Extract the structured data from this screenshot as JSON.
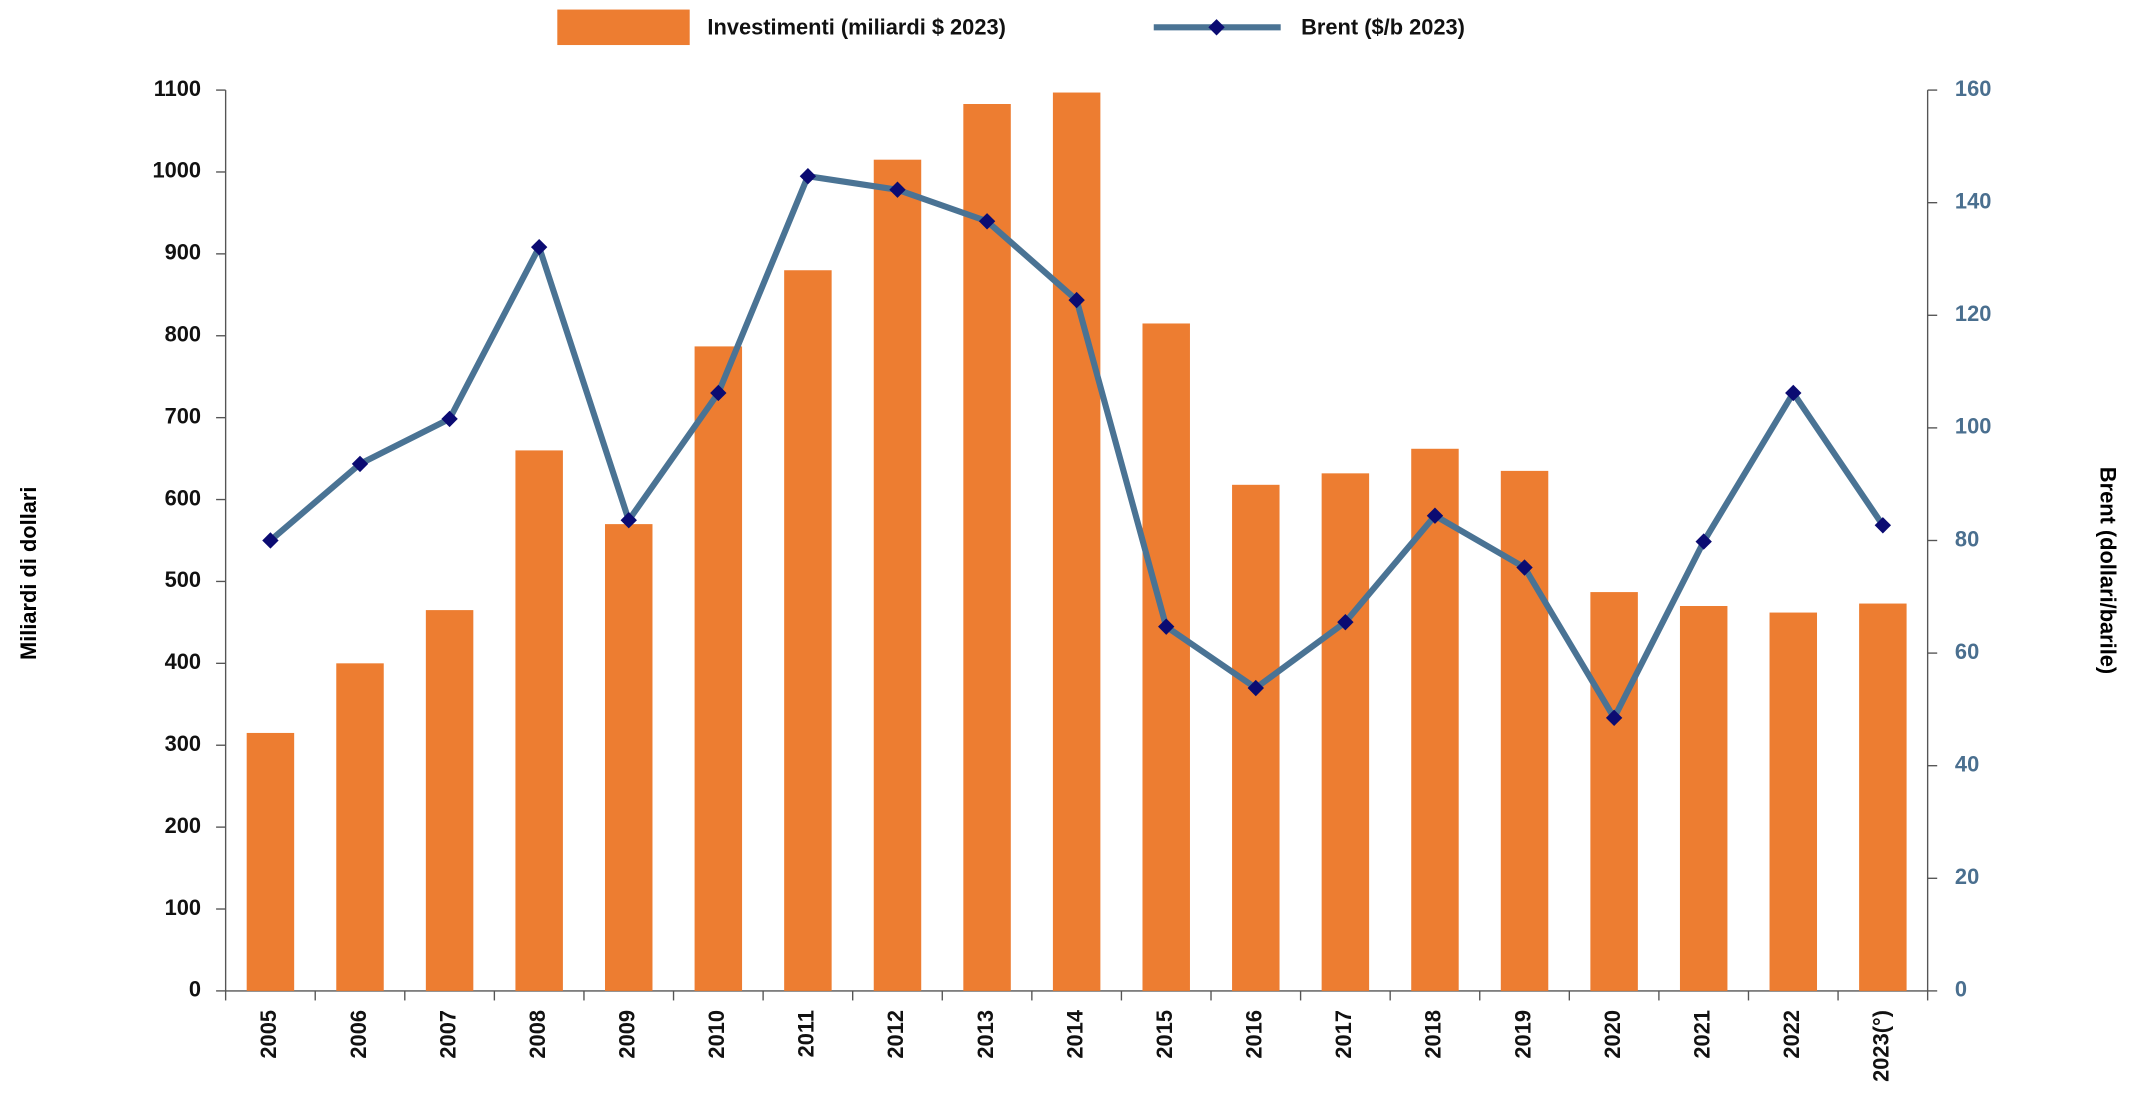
{
  "chart_data": {
    "type": "bar",
    "categories": [
      "2005",
      "2006",
      "2007",
      "2008",
      "2009",
      "2010",
      "2011",
      "2012",
      "2013",
      "2014",
      "2015",
      "2016",
      "2017",
      "2018",
      "2019",
      "2020",
      "2021",
      "2022",
      "2023(°)"
    ],
    "series": [
      {
        "name": "Investimenti (miliardi $ 2023)",
        "type": "bar",
        "color": "#ED7D31",
        "values": [
          315,
          400,
          465,
          660,
          570,
          787,
          880,
          1015,
          1083,
          1097,
          815,
          618,
          632,
          662,
          635,
          487,
          470,
          462,
          473
        ]
      },
      {
        "name": "Brent ($/b 2023)",
        "type": "line",
        "axis": "y2",
        "color": "#4A7394",
        "marker_color": "#0B0B72",
        "values": [
          80,
          93.6,
          101.6,
          132.1,
          83.6,
          106.2,
          144.7,
          142.3,
          136.7,
          122.7,
          64.7,
          53.8,
          65.5,
          84.4,
          75.2,
          48.5,
          79.8,
          106.2,
          82.7
        ]
      }
    ],
    "ylabel": "Miliardi di dollari",
    "y2label": "Brent (dollari/barile)",
    "ylim": [
      0,
      1100
    ],
    "yticks": [
      0,
      100,
      200,
      300,
      400,
      500,
      600,
      700,
      800,
      900,
      1000,
      1100
    ],
    "y2lim": [
      0,
      160
    ],
    "y2ticks": [
      0,
      20,
      40,
      60,
      80,
      100,
      120,
      140,
      160
    ],
    "y2_color": "#4A6F8F",
    "legend": "top"
  }
}
